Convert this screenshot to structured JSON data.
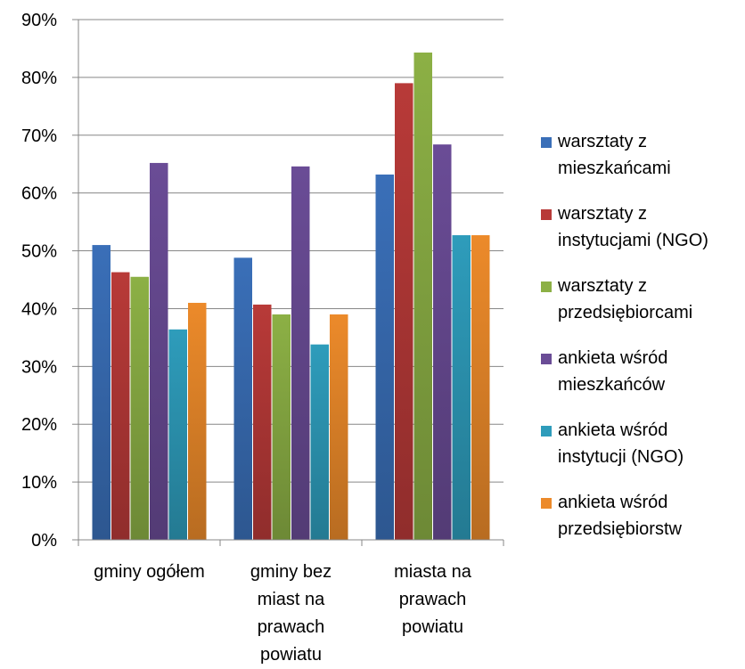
{
  "chart_data": {
    "type": "bar",
    "title": "",
    "xlabel": "",
    "ylabel": "",
    "ylim": [
      0,
      0.9
    ],
    "y_ticks": [
      "0%",
      "10%",
      "20%",
      "30%",
      "40%",
      "50%",
      "60%",
      "70%",
      "80%",
      "90%"
    ],
    "grid": true,
    "legend_position": "right",
    "categories": [
      [
        "gminy ogółem"
      ],
      [
        "gminy bez",
        "miast na",
        "prawach",
        "powiatu"
      ],
      [
        "miasta na",
        "prawach",
        "powiatu"
      ]
    ],
    "series": [
      {
        "name": [
          "warsztaty z",
          "mieszkańcami"
        ],
        "color": "#3a6fb8",
        "values": [
          0.51,
          0.488,
          0.632
        ]
      },
      {
        "name": [
          "warsztaty z",
          "instytucjami (NGO)"
        ],
        "color": "#b83a38",
        "values": [
          0.463,
          0.407,
          0.79
        ]
      },
      {
        "name": [
          "warsztaty z",
          "przedsiębiorcami"
        ],
        "color": "#8cb045",
        "values": [
          0.455,
          0.39,
          0.843
        ]
      },
      {
        "name": [
          "ankieta wśród",
          "mieszkańców"
        ],
        "color": "#6a4c96",
        "values": [
          0.652,
          0.646,
          0.684
        ]
      },
      {
        "name": [
          "ankieta wśród",
          "instytucji (NGO)"
        ],
        "color": "#2e9cbb",
        "values": [
          0.364,
          0.338,
          0.527
        ]
      },
      {
        "name": [
          "ankieta wśród",
          "przedsiębiorstw"
        ],
        "color": "#ec8a2a",
        "values": [
          0.41,
          0.39,
          0.527
        ]
      }
    ]
  }
}
